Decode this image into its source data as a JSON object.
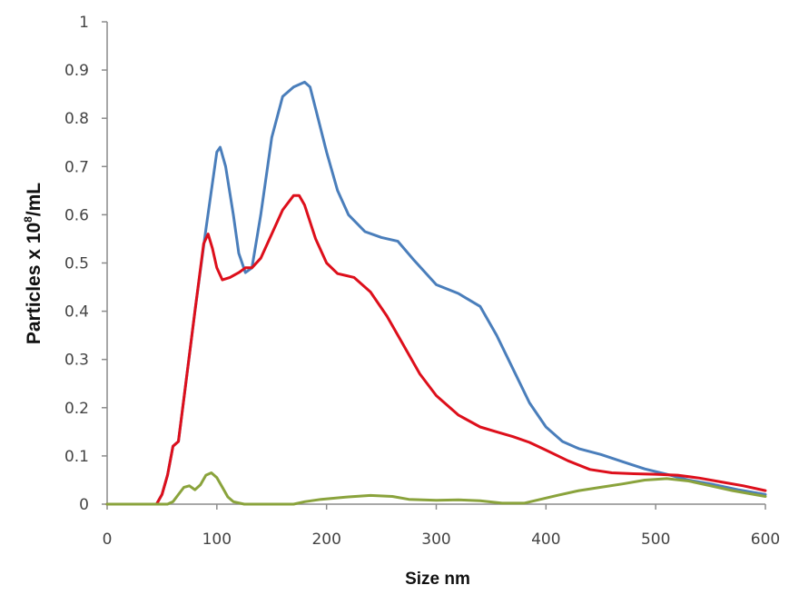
{
  "chart_data": {
    "type": "line",
    "title": "",
    "xlabel": "Size nm",
    "ylabel_main": "Particles x 10",
    "ylabel_sup": "8",
    "ylabel_tail": "/mL",
    "xlim": [
      0,
      600
    ],
    "ylim": [
      0,
      1
    ],
    "xticks": [
      0,
      100,
      200,
      300,
      400,
      500,
      600
    ],
    "xtick_labels": [
      "0",
      "100",
      "200",
      "300",
      "400",
      "500",
      "600"
    ],
    "yticks": [
      0,
      0.1,
      0.2,
      0.3,
      0.4,
      0.5,
      0.6,
      0.7,
      0.8,
      0.9,
      1
    ],
    "ytick_labels": [
      "0",
      "0.1",
      "0.2",
      "0.3",
      "0.4",
      "0.5",
      "0.6",
      "0.7",
      "0.8",
      "0.9",
      "1"
    ],
    "grid": false,
    "legend": "none",
    "series": [
      {
        "color": "#4a7ebb",
        "points": [
          [
            0,
            0
          ],
          [
            45,
            0
          ],
          [
            50,
            0.02
          ],
          [
            55,
            0.06
          ],
          [
            60,
            0.12
          ],
          [
            65,
            0.13
          ],
          [
            70,
            0.22
          ],
          [
            80,
            0.4
          ],
          [
            90,
            0.57
          ],
          [
            95,
            0.65
          ],
          [
            100,
            0.73
          ],
          [
            103,
            0.74
          ],
          [
            108,
            0.7
          ],
          [
            115,
            0.6
          ],
          [
            120,
            0.52
          ],
          [
            126,
            0.48
          ],
          [
            132,
            0.49
          ],
          [
            140,
            0.6
          ],
          [
            150,
            0.76
          ],
          [
            160,
            0.845
          ],
          [
            170,
            0.865
          ],
          [
            180,
            0.875
          ],
          [
            185,
            0.865
          ],
          [
            190,
            0.82
          ],
          [
            200,
            0.73
          ],
          [
            210,
            0.65
          ],
          [
            220,
            0.6
          ],
          [
            235,
            0.565
          ],
          [
            250,
            0.553
          ],
          [
            265,
            0.545
          ],
          [
            280,
            0.505
          ],
          [
            300,
            0.455
          ],
          [
            320,
            0.437
          ],
          [
            340,
            0.41
          ],
          [
            355,
            0.35
          ],
          [
            370,
            0.28
          ],
          [
            385,
            0.21
          ],
          [
            400,
            0.16
          ],
          [
            415,
            0.13
          ],
          [
            430,
            0.115
          ],
          [
            450,
            0.103
          ],
          [
            470,
            0.088
          ],
          [
            490,
            0.073
          ],
          [
            510,
            0.062
          ],
          [
            530,
            0.05
          ],
          [
            550,
            0.042
          ],
          [
            575,
            0.03
          ],
          [
            600,
            0.02
          ]
        ]
      },
      {
        "color": "#dd0f1b",
        "points": [
          [
            0,
            0
          ],
          [
            45,
            0
          ],
          [
            50,
            0.02
          ],
          [
            55,
            0.06
          ],
          [
            60,
            0.12
          ],
          [
            65,
            0.13
          ],
          [
            70,
            0.22
          ],
          [
            80,
            0.4
          ],
          [
            88,
            0.54
          ],
          [
            92,
            0.56
          ],
          [
            96,
            0.53
          ],
          [
            100,
            0.49
          ],
          [
            105,
            0.465
          ],
          [
            112,
            0.47
          ],
          [
            120,
            0.48
          ],
          [
            126,
            0.49
          ],
          [
            132,
            0.49
          ],
          [
            140,
            0.51
          ],
          [
            150,
            0.56
          ],
          [
            160,
            0.61
          ],
          [
            170,
            0.64
          ],
          [
            175,
            0.64
          ],
          [
            180,
            0.62
          ],
          [
            190,
            0.55
          ],
          [
            200,
            0.5
          ],
          [
            210,
            0.478
          ],
          [
            225,
            0.47
          ],
          [
            240,
            0.44
          ],
          [
            255,
            0.39
          ],
          [
            270,
            0.33
          ],
          [
            285,
            0.27
          ],
          [
            300,
            0.225
          ],
          [
            320,
            0.185
          ],
          [
            340,
            0.16
          ],
          [
            355,
            0.15
          ],
          [
            370,
            0.14
          ],
          [
            385,
            0.128
          ],
          [
            400,
            0.112
          ],
          [
            420,
            0.09
          ],
          [
            440,
            0.072
          ],
          [
            460,
            0.065
          ],
          [
            480,
            0.063
          ],
          [
            500,
            0.062
          ],
          [
            520,
            0.06
          ],
          [
            540,
            0.054
          ],
          [
            560,
            0.046
          ],
          [
            580,
            0.038
          ],
          [
            600,
            0.028
          ]
        ]
      },
      {
        "color": "#8aa33c",
        "points": [
          [
            0,
            0
          ],
          [
            55,
            0
          ],
          [
            60,
            0.005
          ],
          [
            65,
            0.02
          ],
          [
            70,
            0.035
          ],
          [
            75,
            0.038
          ],
          [
            80,
            0.03
          ],
          [
            85,
            0.04
          ],
          [
            90,
            0.06
          ],
          [
            95,
            0.065
          ],
          [
            100,
            0.055
          ],
          [
            105,
            0.035
          ],
          [
            110,
            0.015
          ],
          [
            115,
            0.005
          ],
          [
            125,
            0
          ],
          [
            170,
            0
          ],
          [
            180,
            0.005
          ],
          [
            195,
            0.01
          ],
          [
            220,
            0.015
          ],
          [
            240,
            0.018
          ],
          [
            260,
            0.016
          ],
          [
            275,
            0.01
          ],
          [
            300,
            0.008
          ],
          [
            320,
            0.009
          ],
          [
            340,
            0.007
          ],
          [
            360,
            0.002
          ],
          [
            380,
            0.002
          ],
          [
            395,
            0.01
          ],
          [
            410,
            0.018
          ],
          [
            430,
            0.028
          ],
          [
            450,
            0.035
          ],
          [
            470,
            0.042
          ],
          [
            490,
            0.05
          ],
          [
            510,
            0.053
          ],
          [
            530,
            0.048
          ],
          [
            550,
            0.038
          ],
          [
            570,
            0.028
          ],
          [
            590,
            0.02
          ],
          [
            600,
            0.016
          ]
        ]
      }
    ]
  }
}
